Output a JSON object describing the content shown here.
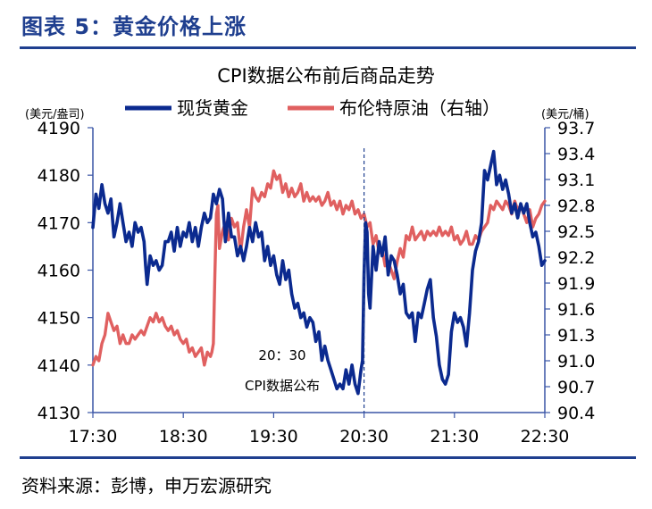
{
  "figure_title": "图表 5：黄金价格上涨",
  "source": "资料来源：彭博，申万宏源研究",
  "colors": {
    "gold": "#0b2a8f",
    "oil": "#e06060",
    "accent": "#1f3f8f",
    "axis": "#3a55a6"
  },
  "chart_data": {
    "type": "line",
    "title": "CPI数据公布前后商品走势",
    "y_left_label": "(美元/盎司)",
    "y_right_label": "(美元/桶)",
    "x_ticks": [
      "17:30",
      "18:30",
      "19:30",
      "20:30",
      "21:30",
      "22:30"
    ],
    "y_left_ticks": [
      4190,
      4180,
      4170,
      4160,
      4150,
      4140,
      4130
    ],
    "y_right_ticks": [
      93.7,
      93.4,
      93.1,
      92.8,
      92.5,
      92.2,
      91.9,
      91.6,
      91.3,
      91.0,
      90.7,
      90.4
    ],
    "y_left_range": [
      4130,
      4190
    ],
    "y_right_range": [
      90.4,
      93.7
    ],
    "x_range_minutes": [
      1050,
      1350
    ],
    "annotation": {
      "time_label": "20：30",
      "text": "CPI数据公布",
      "x_minutes": 1230
    },
    "series": [
      {
        "name": "现货黄金",
        "axis": "left",
        "points": [
          [
            1050,
            4169
          ],
          [
            1052,
            4176
          ],
          [
            1054,
            4173
          ],
          [
            1056,
            4178
          ],
          [
            1058,
            4174
          ],
          [
            1060,
            4172
          ],
          [
            1062,
            4175
          ],
          [
            1064,
            4167
          ],
          [
            1066,
            4170
          ],
          [
            1068,
            4174
          ],
          [
            1070,
            4170
          ],
          [
            1072,
            4166
          ],
          [
            1074,
            4168
          ],
          [
            1076,
            4165
          ],
          [
            1078,
            4170
          ],
          [
            1080,
            4168
          ],
          [
            1082,
            4169
          ],
          [
            1084,
            4166
          ],
          [
            1085,
            4161
          ],
          [
            1086,
            4157
          ],
          [
            1088,
            4163
          ],
          [
            1090,
            4161
          ],
          [
            1092,
            4162
          ],
          [
            1094,
            4160
          ],
          [
            1096,
            4161
          ],
          [
            1098,
            4166
          ],
          [
            1100,
            4166
          ],
          [
            1102,
            4168
          ],
          [
            1104,
            4164
          ],
          [
            1106,
            4169
          ],
          [
            1108,
            4165
          ],
          [
            1110,
            4168
          ],
          [
            1112,
            4167
          ],
          [
            1114,
            4170
          ],
          [
            1116,
            4166
          ],
          [
            1118,
            4169
          ],
          [
            1120,
            4165
          ],
          [
            1122,
            4169
          ],
          [
            1124,
            4172
          ],
          [
            1126,
            4170
          ],
          [
            1128,
            4171
          ],
          [
            1130,
            4176
          ],
          [
            1132,
            4174
          ],
          [
            1134,
            4177
          ],
          [
            1136,
            4175
          ],
          [
            1138,
            4166
          ],
          [
            1140,
            4172
          ],
          [
            1142,
            4167
          ],
          [
            1144,
            4167
          ],
          [
            1146,
            4163
          ],
          [
            1148,
            4165
          ],
          [
            1150,
            4162
          ],
          [
            1152,
            4165
          ],
          [
            1154,
            4169
          ],
          [
            1156,
            4166
          ],
          [
            1158,
            4170
          ],
          [
            1160,
            4167
          ],
          [
            1162,
            4168
          ],
          [
            1164,
            4162
          ],
          [
            1166,
            4165
          ],
          [
            1168,
            4161
          ],
          [
            1170,
            4163
          ],
          [
            1172,
            4159
          ],
          [
            1174,
            4157
          ],
          [
            1176,
            4162
          ],
          [
            1178,
            4158
          ],
          [
            1180,
            4160
          ],
          [
            1182,
            4155
          ],
          [
            1184,
            4152
          ],
          [
            1186,
            4153
          ],
          [
            1188,
            4150
          ],
          [
            1190,
            4151
          ],
          [
            1192,
            4148
          ],
          [
            1194,
            4150
          ],
          [
            1196,
            4149
          ],
          [
            1198,
            4145
          ],
          [
            1200,
            4147
          ],
          [
            1202,
            4141
          ],
          [
            1204,
            4144
          ],
          [
            1206,
            4141
          ],
          [
            1208,
            4139
          ],
          [
            1210,
            4137
          ],
          [
            1212,
            4135
          ],
          [
            1214,
            4136
          ],
          [
            1216,
            4135
          ],
          [
            1218,
            4139
          ],
          [
            1220,
            4136
          ],
          [
            1222,
            4140
          ],
          [
            1224,
            4136
          ],
          [
            1226,
            4134
          ],
          [
            1228,
            4139
          ],
          [
            1229,
            4141
          ],
          [
            1230,
            4159
          ],
          [
            1231,
            4170
          ],
          [
            1232,
            4168
          ],
          [
            1233,
            4155
          ],
          [
            1234,
            4152
          ],
          [
            1236,
            4165
          ],
          [
            1238,
            4160
          ],
          [
            1240,
            4166
          ],
          [
            1242,
            4163
          ],
          [
            1244,
            4167
          ],
          [
            1246,
            4159
          ],
          [
            1248,
            4163
          ],
          [
            1250,
            4162
          ],
          [
            1252,
            4159
          ],
          [
            1254,
            4155
          ],
          [
            1256,
            4157
          ],
          [
            1258,
            4151
          ],
          [
            1260,
            4150
          ],
          [
            1262,
            4151
          ],
          [
            1264,
            4145
          ],
          [
            1266,
            4151
          ],
          [
            1268,
            4150
          ],
          [
            1270,
            4153
          ],
          [
            1272,
            4156
          ],
          [
            1274,
            4158
          ],
          [
            1276,
            4150
          ],
          [
            1278,
            4146
          ],
          [
            1280,
            4140
          ],
          [
            1282,
            4137
          ],
          [
            1284,
            4136
          ],
          [
            1286,
            4138
          ],
          [
            1288,
            4147
          ],
          [
            1290,
            4151
          ],
          [
            1292,
            4149
          ],
          [
            1294,
            4150
          ],
          [
            1296,
            4148
          ],
          [
            1298,
            4144
          ],
          [
            1300,
            4151
          ],
          [
            1302,
            4160
          ],
          [
            1304,
            4164
          ],
          [
            1306,
            4166
          ],
          [
            1308,
            4170
          ],
          [
            1310,
            4181
          ],
          [
            1312,
            4179
          ],
          [
            1314,
            4182
          ],
          [
            1316,
            4185
          ],
          [
            1318,
            4178
          ],
          [
            1320,
            4180
          ],
          [
            1322,
            4177
          ],
          [
            1324,
            4179
          ],
          [
            1326,
            4176
          ],
          [
            1328,
            4172
          ],
          [
            1330,
            4174
          ],
          [
            1332,
            4171
          ],
          [
            1334,
            4174
          ],
          [
            1336,
            4172
          ],
          [
            1338,
            4174
          ],
          [
            1340,
            4170
          ],
          [
            1342,
            4167
          ],
          [
            1344,
            4168
          ],
          [
            1346,
            4165
          ],
          [
            1348,
            4161
          ],
          [
            1350,
            4162
          ]
        ]
      },
      {
        "name": "布伦特原油（右轴）",
        "axis": "right",
        "points": [
          [
            1050,
            90.95
          ],
          [
            1052,
            91.05
          ],
          [
            1054,
            91.0
          ],
          [
            1056,
            91.2
          ],
          [
            1058,
            91.3
          ],
          [
            1060,
            91.55
          ],
          [
            1062,
            91.45
          ],
          [
            1064,
            91.35
          ],
          [
            1066,
            91.4
          ],
          [
            1068,
            91.2
          ],
          [
            1070,
            91.3
          ],
          [
            1072,
            91.2
          ],
          [
            1074,
            91.2
          ],
          [
            1076,
            91.3
          ],
          [
            1078,
            91.25
          ],
          [
            1080,
            91.3
          ],
          [
            1082,
            91.35
          ],
          [
            1084,
            91.3
          ],
          [
            1086,
            91.4
          ],
          [
            1088,
            91.5
          ],
          [
            1090,
            91.45
          ],
          [
            1092,
            91.55
          ],
          [
            1094,
            91.45
          ],
          [
            1096,
            91.5
          ],
          [
            1098,
            91.4
          ],
          [
            1100,
            91.35
          ],
          [
            1102,
            91.4
          ],
          [
            1104,
            91.3
          ],
          [
            1106,
            91.35
          ],
          [
            1108,
            91.25
          ],
          [
            1110,
            91.2
          ],
          [
            1112,
            91.25
          ],
          [
            1114,
            91.1
          ],
          [
            1116,
            91.15
          ],
          [
            1118,
            91.05
          ],
          [
            1120,
            91.1
          ],
          [
            1122,
            91.15
          ],
          [
            1124,
            90.95
          ],
          [
            1126,
            91.1
          ],
          [
            1128,
            91.05
          ],
          [
            1129,
            91.1
          ],
          [
            1130,
            91.2
          ],
          [
            1131,
            92.0
          ],
          [
            1132,
            92.7
          ],
          [
            1133,
            92.8
          ],
          [
            1134,
            92.3
          ],
          [
            1136,
            92.5
          ],
          [
            1138,
            92.6
          ],
          [
            1140,
            92.4
          ],
          [
            1142,
            92.65
          ],
          [
            1144,
            92.55
          ],
          [
            1146,
            92.6
          ],
          [
            1148,
            92.25
          ],
          [
            1150,
            92.55
          ],
          [
            1152,
            92.75
          ],
          [
            1154,
            92.55
          ],
          [
            1156,
            93.0
          ],
          [
            1158,
            92.9
          ],
          [
            1160,
            92.85
          ],
          [
            1162,
            92.95
          ],
          [
            1164,
            92.9
          ],
          [
            1166,
            93.05
          ],
          [
            1168,
            93.0
          ],
          [
            1170,
            93.2
          ],
          [
            1172,
            93.1
          ],
          [
            1174,
            93.15
          ],
          [
            1176,
            92.95
          ],
          [
            1178,
            93.05
          ],
          [
            1180,
            92.9
          ],
          [
            1182,
            93.0
          ],
          [
            1184,
            92.9
          ],
          [
            1186,
            92.95
          ],
          [
            1188,
            93.05
          ],
          [
            1190,
            92.85
          ],
          [
            1192,
            92.95
          ],
          [
            1194,
            92.85
          ],
          [
            1196,
            92.9
          ],
          [
            1198,
            92.85
          ],
          [
            1200,
            92.9
          ],
          [
            1202,
            92.8
          ],
          [
            1204,
            92.85
          ],
          [
            1206,
            92.95
          ],
          [
            1208,
            92.8
          ],
          [
            1210,
            92.85
          ],
          [
            1212,
            92.75
          ],
          [
            1214,
            92.85
          ],
          [
            1216,
            92.7
          ],
          [
            1218,
            92.8
          ],
          [
            1220,
            92.75
          ],
          [
            1222,
            92.85
          ],
          [
            1224,
            92.7
          ],
          [
            1226,
            92.75
          ],
          [
            1228,
            92.65
          ],
          [
            1230,
            92.7
          ],
          [
            1232,
            92.55
          ],
          [
            1234,
            92.6
          ],
          [
            1236,
            92.35
          ],
          [
            1238,
            92.45
          ],
          [
            1240,
            92.25
          ],
          [
            1242,
            92.3
          ],
          [
            1244,
            92.1
          ],
          [
            1246,
            92.15
          ],
          [
            1248,
            92.05
          ],
          [
            1250,
            91.95
          ],
          [
            1252,
            92.15
          ],
          [
            1254,
            92.3
          ],
          [
            1256,
            92.2
          ],
          [
            1258,
            92.45
          ],
          [
            1260,
            92.4
          ],
          [
            1262,
            92.55
          ],
          [
            1264,
            92.4
          ],
          [
            1266,
            92.45
          ],
          [
            1268,
            92.5
          ],
          [
            1270,
            92.4
          ],
          [
            1272,
            92.5
          ],
          [
            1274,
            92.45
          ],
          [
            1276,
            92.5
          ],
          [
            1278,
            92.45
          ],
          [
            1280,
            92.55
          ],
          [
            1282,
            92.45
          ],
          [
            1284,
            92.5
          ],
          [
            1286,
            92.45
          ],
          [
            1288,
            92.55
          ],
          [
            1290,
            92.4
          ],
          [
            1292,
            92.45
          ],
          [
            1294,
            92.35
          ],
          [
            1296,
            92.4
          ],
          [
            1298,
            92.5
          ],
          [
            1300,
            92.35
          ],
          [
            1302,
            92.35
          ],
          [
            1304,
            92.45
          ],
          [
            1306,
            92.4
          ],
          [
            1308,
            92.5
          ],
          [
            1310,
            92.55
          ],
          [
            1312,
            92.6
          ],
          [
            1314,
            92.8
          ],
          [
            1316,
            92.75
          ],
          [
            1318,
            92.85
          ],
          [
            1320,
            92.8
          ],
          [
            1322,
            92.75
          ],
          [
            1324,
            92.85
          ],
          [
            1326,
            92.8
          ],
          [
            1328,
            92.7
          ],
          [
            1330,
            92.85
          ],
          [
            1332,
            92.75
          ],
          [
            1334,
            92.8
          ],
          [
            1336,
            92.7
          ],
          [
            1338,
            92.6
          ],
          [
            1340,
            92.75
          ],
          [
            1342,
            92.55
          ],
          [
            1344,
            92.65
          ],
          [
            1346,
            92.7
          ],
          [
            1348,
            92.8
          ],
          [
            1350,
            92.85
          ]
        ]
      }
    ]
  }
}
